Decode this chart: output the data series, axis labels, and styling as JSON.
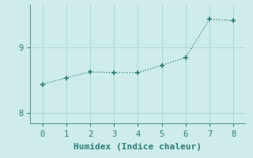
{
  "x": [
    0,
    1,
    2,
    3,
    4,
    5,
    6,
    7,
    8
  ],
  "y": [
    8.44,
    8.54,
    8.63,
    8.62,
    8.62,
    8.73,
    8.85,
    9.43,
    9.41
  ],
  "line_color": "#2a7d78",
  "marker": "+",
  "marker_size": 4,
  "marker_linewidth": 1.2,
  "xlabel": "Humidex (Indice chaleur)",
  "xlabel_fontsize": 8,
  "xlim": [
    -0.5,
    8.5
  ],
  "ylim": [
    7.85,
    9.65
  ],
  "xticks": [
    0,
    1,
    2,
    3,
    4,
    5,
    6,
    7,
    8
  ],
  "yticks": [
    8.0,
    9.0
  ],
  "background_color": "#ceecea",
  "grid_color": "#a8d8d4",
  "axis_color": "#5a9a96",
  "tick_color": "#2a7d78",
  "tick_label_fontsize": 7.5
}
